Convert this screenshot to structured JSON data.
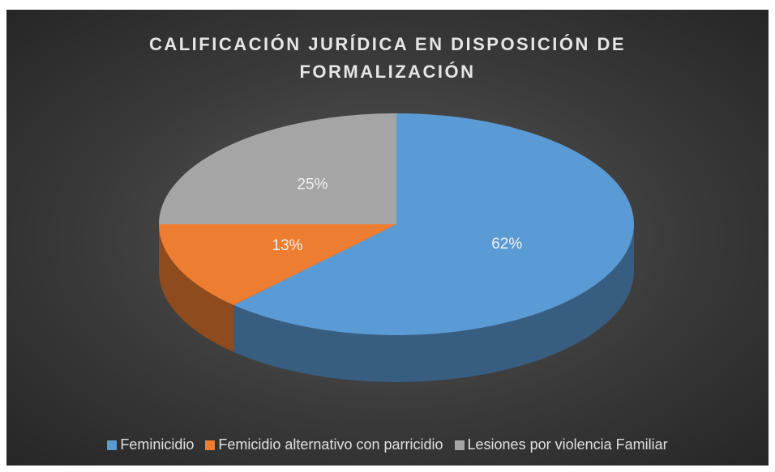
{
  "chart_data": {
    "type": "pie",
    "title": "CALIFICACIÓN JURÍDICA EN DISPOSICIÓN DE FORMALIZACIÓN",
    "categories": [
      "Feminicidio",
      "Femicidio alternativo con parricidio",
      "Lesiones por violencia Familiar"
    ],
    "values": [
      62,
      13,
      25
    ],
    "value_labels": [
      "62%",
      "13%",
      "25%"
    ],
    "colors": [
      "#5b9bd5",
      "#ed7d31",
      "#a5a5a5"
    ],
    "legend": "bottom"
  }
}
